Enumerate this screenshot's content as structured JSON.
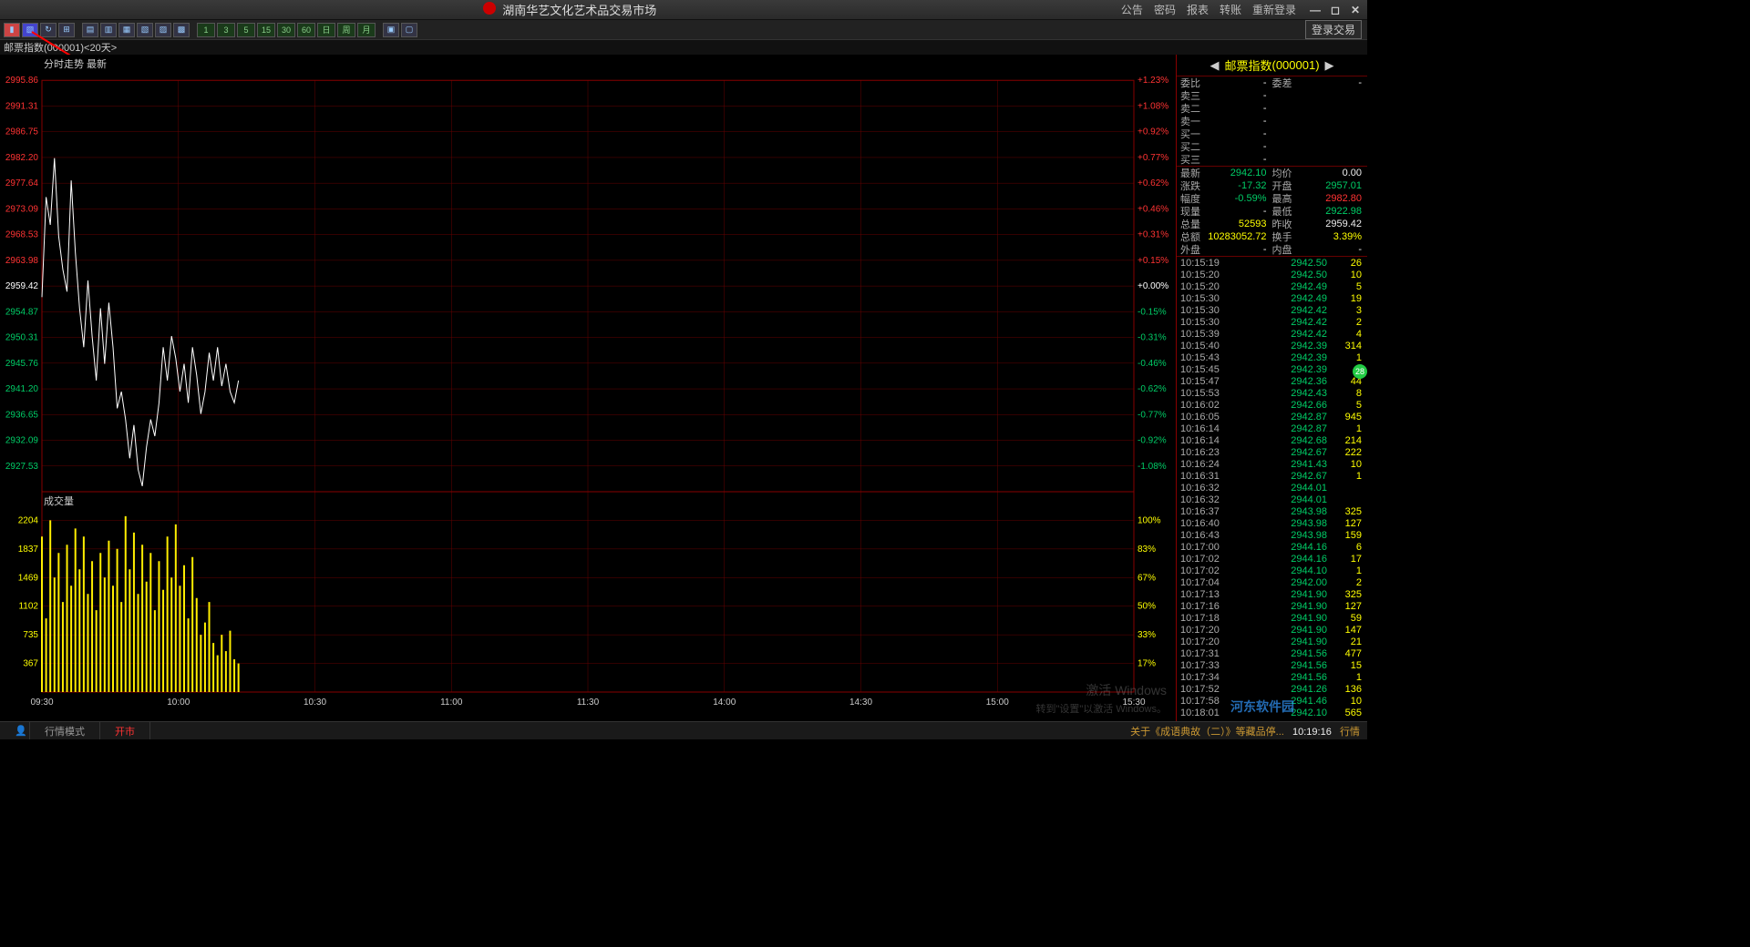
{
  "titlebar": {
    "title": "湖南华艺文化艺术品交易市场",
    "menu": [
      "公告",
      "密码",
      "报表",
      "转账",
      "重新登录"
    ],
    "login_trade": "登录交易"
  },
  "subheader": "邮票指数(000001)<20天>",
  "chart_tl": "分时走势 最新",
  "vol_label": "成交量",
  "right": {
    "title_name": "邮票指数",
    "title_code": "(000001)",
    "order_rows": [
      {
        "l": "委比",
        "v": "-",
        "l2": "委差",
        "v2": "-"
      },
      {
        "l": "卖三",
        "v": "-",
        "l2": "",
        "v2": ""
      },
      {
        "l": "卖二",
        "v": "-",
        "l2": "",
        "v2": ""
      },
      {
        "l": "卖一",
        "v": "-",
        "l2": "",
        "v2": ""
      },
      {
        "l": "买一",
        "v": "-",
        "l2": "",
        "v2": ""
      },
      {
        "l": "买二",
        "v": "-",
        "l2": "",
        "v2": ""
      },
      {
        "l": "买三",
        "v": "-",
        "l2": "",
        "v2": ""
      }
    ],
    "stat_rows": [
      {
        "l": "最新",
        "v": "2942.10",
        "c": "green",
        "l2": "均价",
        "v2": "0.00",
        "c2": "white"
      },
      {
        "l": "涨跌",
        "v": "-17.32",
        "c": "green",
        "l2": "开盘",
        "v2": "2957.01",
        "c2": "green"
      },
      {
        "l": "幅度",
        "v": "-0.59%",
        "c": "green",
        "l2": "最高",
        "v2": "2982.80",
        "c2": "red"
      },
      {
        "l": "现量",
        "v": "-",
        "c": "white",
        "l2": "最低",
        "v2": "2922.98",
        "c2": "green"
      },
      {
        "l": "总量",
        "v": "52593",
        "c": "yellow",
        "l2": "昨收",
        "v2": "2959.42",
        "c2": "white"
      },
      {
        "l": "总额",
        "v": "10283052.72",
        "c": "yellow",
        "l2": "换手",
        "v2": "3.39%",
        "c2": "yellow"
      },
      {
        "l": "外盘",
        "v": "-",
        "c": "white",
        "l2": "内盘",
        "v2": "-",
        "c2": "white"
      }
    ],
    "ticks": [
      {
        "t": "10:15:19",
        "p": "2942.50",
        "q": "26"
      },
      {
        "t": "10:15:20",
        "p": "2942.50",
        "q": "10"
      },
      {
        "t": "10:15:20",
        "p": "2942.49",
        "q": "5"
      },
      {
        "t": "10:15:30",
        "p": "2942.49",
        "q": "19"
      },
      {
        "t": "10:15:30",
        "p": "2942.42",
        "q": "3"
      },
      {
        "t": "10:15:30",
        "p": "2942.42",
        "q": "2"
      },
      {
        "t": "10:15:39",
        "p": "2942.42",
        "q": "4"
      },
      {
        "t": "10:15:40",
        "p": "2942.39",
        "q": "314"
      },
      {
        "t": "10:15:43",
        "p": "2942.39",
        "q": "1"
      },
      {
        "t": "10:15:45",
        "p": "2942.39",
        "q": "7"
      },
      {
        "t": "10:15:47",
        "p": "2942.36",
        "q": "44"
      },
      {
        "t": "10:15:53",
        "p": "2942.43",
        "q": "8"
      },
      {
        "t": "10:16:02",
        "p": "2942.66",
        "q": "5"
      },
      {
        "t": "10:16:05",
        "p": "2942.87",
        "q": "945"
      },
      {
        "t": "10:16:14",
        "p": "2942.87",
        "q": "1"
      },
      {
        "t": "10:16:14",
        "p": "2942.68",
        "q": "214"
      },
      {
        "t": "10:16:23",
        "p": "2942.67",
        "q": "222"
      },
      {
        "t": "10:16:24",
        "p": "2941.43",
        "q": "10"
      },
      {
        "t": "10:16:31",
        "p": "2942.67",
        "q": "1"
      },
      {
        "t": "10:16:32",
        "p": "2944.01",
        "q": ""
      },
      {
        "t": "10:16:32",
        "p": "2944.01",
        "q": ""
      },
      {
        "t": "10:16:37",
        "p": "2943.98",
        "q": "325"
      },
      {
        "t": "10:16:40",
        "p": "2943.98",
        "q": "127"
      },
      {
        "t": "10:16:43",
        "p": "2943.98",
        "q": "159"
      },
      {
        "t": "10:17:00",
        "p": "2944.16",
        "q": "6"
      },
      {
        "t": "10:17:02",
        "p": "2944.16",
        "q": "17"
      },
      {
        "t": "10:17:02",
        "p": "2944.10",
        "q": "1"
      },
      {
        "t": "10:17:04",
        "p": "2942.00",
        "q": "2"
      },
      {
        "t": "10:17:13",
        "p": "2941.90",
        "q": "325"
      },
      {
        "t": "10:17:16",
        "p": "2941.90",
        "q": "127"
      },
      {
        "t": "10:17:18",
        "p": "2941.90",
        "q": "59"
      },
      {
        "t": "10:17:20",
        "p": "2941.90",
        "q": "147"
      },
      {
        "t": "10:17:20",
        "p": "2941.90",
        "q": "21"
      },
      {
        "t": "10:17:31",
        "p": "2941.56",
        "q": "477"
      },
      {
        "t": "10:17:33",
        "p": "2941.56",
        "q": "15"
      },
      {
        "t": "10:17:34",
        "p": "2941.56",
        "q": "1"
      },
      {
        "t": "10:17:52",
        "p": "2941.26",
        "q": "136"
      },
      {
        "t": "10:17:58",
        "p": "2941.46",
        "q": "10"
      },
      {
        "t": "10:18:01",
        "p": "2942.10",
        "q": "565"
      }
    ]
  },
  "price_chart": {
    "y_center": 2959.42,
    "y_labels_left": [
      "2995.86",
      "2991.31",
      "2986.75",
      "2982.20",
      "2977.64",
      "2973.09",
      "2968.53",
      "2963.98",
      "2959.42",
      "2954.87",
      "2950.31",
      "2945.76",
      "2941.20",
      "2936.65",
      "2932.09",
      "2927.53"
    ],
    "y_labels_right": [
      "+1.23%",
      "+1.08%",
      "+0.92%",
      "+0.77%",
      "+0.62%",
      "+0.46%",
      "+0.31%",
      "+0.15%",
      "+0.00%",
      "-0.15%",
      "-0.31%",
      "-0.46%",
      "-0.62%",
      "-0.77%",
      "-0.92%",
      "-1.08%"
    ],
    "x_labels": [
      "09:30",
      "10:00",
      "10:30",
      "11:00",
      "11:30",
      "14:00",
      "14:30",
      "15:00",
      "15:30"
    ],
    "series_color": "#ffffff",
    "grid_color": "#660000",
    "label_red": "#ff3333",
    "label_green": "#00cc66",
    "data": [
      2957,
      2975,
      2970,
      2982,
      2968,
      2962,
      2958,
      2978,
      2965,
      2955,
      2948,
      2960,
      2950,
      2942,
      2955,
      2945,
      2956,
      2948,
      2937,
      2940,
      2935,
      2928,
      2934,
      2926,
      2923,
      2930,
      2935,
      2932,
      2938,
      2948,
      2942,
      2950,
      2946,
      2940,
      2945,
      2938,
      2948,
      2943,
      2936,
      2940,
      2947,
      2942,
      2948,
      2941,
      2945,
      2940,
      2938,
      2942
    ]
  },
  "vol_chart": {
    "y_labels": [
      "2204",
      "1837",
      "1469",
      "1102",
      "735",
      "367"
    ],
    "y_labels_right": [
      "100%",
      "83%",
      "67%",
      "50%",
      "33%",
      "17%"
    ],
    "bar_color": "#ffee00",
    "data": [
      1900,
      900,
      2100,
      1400,
      1700,
      1100,
      1800,
      1300,
      2000,
      1500,
      1900,
      1200,
      1600,
      1000,
      1700,
      1400,
      1850,
      1300,
      1750,
      1100,
      2150,
      1500,
      1950,
      1200,
      1800,
      1350,
      1700,
      1000,
      1600,
      1250,
      1900,
      1400,
      2050,
      1300,
      1550,
      900,
      1650,
      1150,
      700,
      850,
      1100,
      600,
      450,
      700,
      500,
      750,
      400,
      350
    ]
  },
  "status": {
    "mode": "行情模式",
    "market": "开市",
    "news": "关于《成语典故（二）》等藏品停...",
    "time": "10:19:16",
    "sig": "行情"
  },
  "watermark1": "激活 Windows",
  "watermark2": "转到\"设置\"以激活 Windows。",
  "overlay_logo": "河东软件园"
}
